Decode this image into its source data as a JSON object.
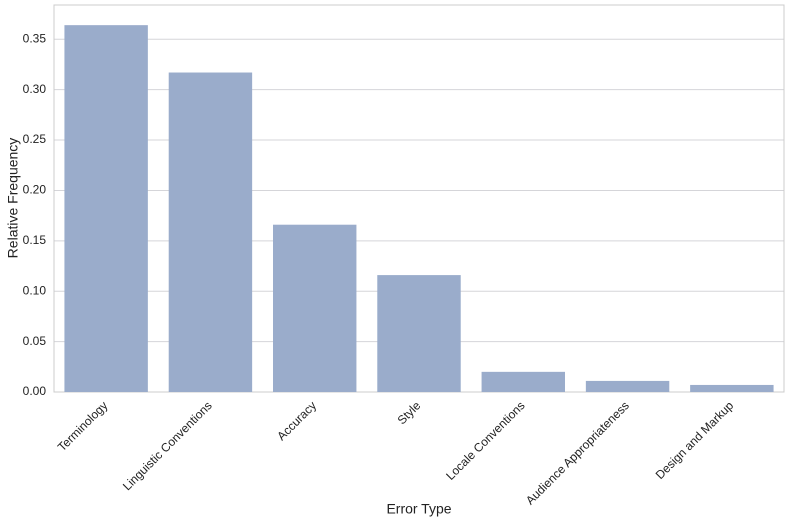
{
  "chart_data": {
    "type": "bar",
    "xlabel": "Error Type",
    "ylabel": "Relative Frequency",
    "categories": [
      "Terminology",
      "Linguistic Conventions",
      "Accuracy",
      "Style",
      "Locale Conventions",
      "Audience Appropriateness",
      "Design and Markup"
    ],
    "values": [
      0.364,
      0.317,
      0.166,
      0.116,
      0.02,
      0.011,
      0.007
    ],
    "color": "#9aaccb",
    "ylim": [
      0,
      0.384
    ],
    "yticks": [
      {
        "value": 0,
        "label": "0.00"
      },
      {
        "value": 0.05,
        "label": "0.05"
      },
      {
        "value": 0.1,
        "label": "0.10"
      },
      {
        "value": 0.15,
        "label": "0.15"
      },
      {
        "value": 0.2,
        "label": "0.20"
      },
      {
        "value": 0.25,
        "label": "0.25"
      },
      {
        "value": 0.3,
        "label": "0.30"
      },
      {
        "value": 0.35,
        "label": "0.35"
      }
    ],
    "grid": true
  }
}
